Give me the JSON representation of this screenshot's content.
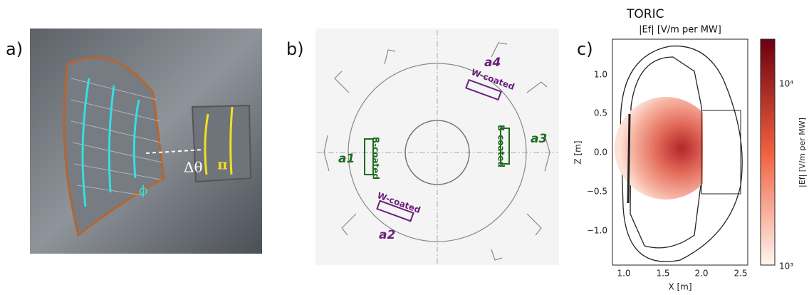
{
  "panels": [
    {
      "label": "a)",
      "annotations": [
        "Δθ",
        "π",
        "ϕ"
      ]
    },
    {
      "label": "b)",
      "antennas": [
        {
          "name": "a1",
          "coating": "B-coated"
        },
        {
          "name": "a2",
          "coating": "W-coated"
        },
        {
          "name": "a3",
          "coating": "B-coated"
        },
        {
          "name": "a4",
          "coating": "W-coated"
        }
      ]
    },
    {
      "label": "c)",
      "title": "TORIC",
      "subtitle": "|Ef| [V/m per MW]",
      "x_label": "X [m]",
      "y_label": "Z [m]",
      "x_ticks": [
        "1.0",
        "1.5",
        "2.0",
        "2.5"
      ],
      "y_ticks": [
        "1.0",
        "0.5",
        "0.0",
        "−0.5",
        "−1.0"
      ],
      "colorbar_label": "|Ef| [V/m per MW]",
      "colorbar_ticks": [
        "10⁴",
        "10³"
      ]
    }
  ]
}
